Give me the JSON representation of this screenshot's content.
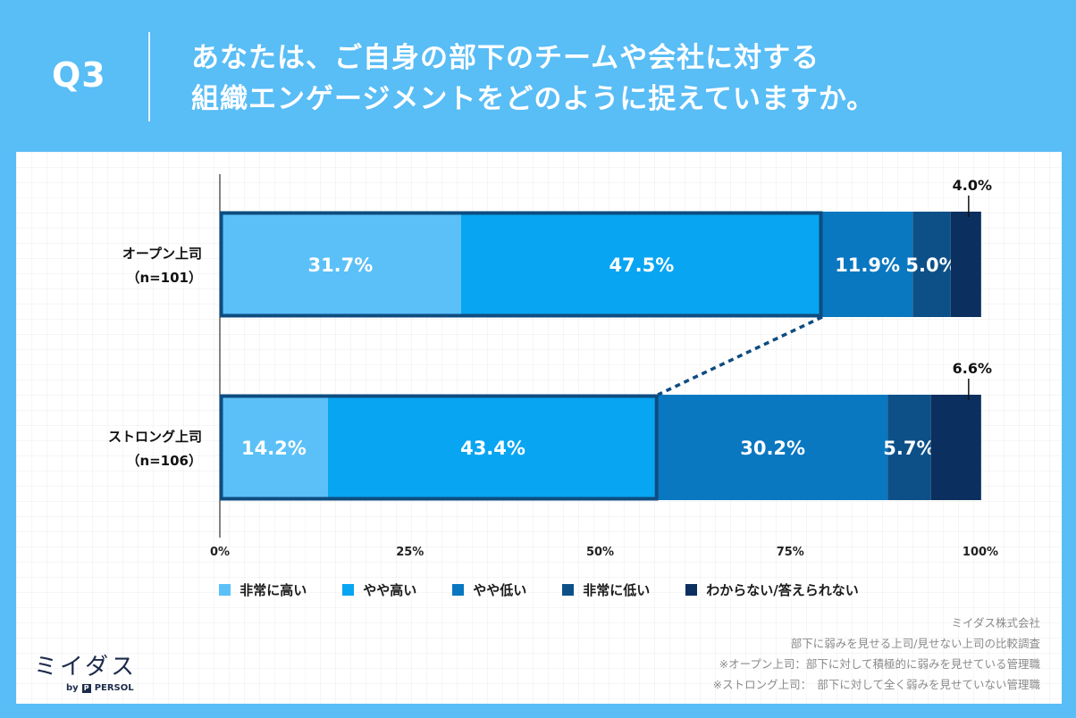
{
  "header": {
    "q_label": "Q3",
    "title_line1": "あなたは、ご自身の部下のチームや会社に対する",
    "title_line2": "組織エンゲージメントをどのように捉えていますか。"
  },
  "chart_data": {
    "type": "bar",
    "orientation": "horizontal-stacked-100",
    "categories": [
      {
        "line1": "オープン上司",
        "line2": "（n=101）"
      },
      {
        "line1": "ストロング上司",
        "line2": "（n=106）"
      }
    ],
    "series": [
      {
        "name": "非常に高い",
        "color": "#5BC0F7",
        "values": [
          31.7,
          14.2
        ]
      },
      {
        "name": "やや高い",
        "color": "#08A5F2",
        "values": [
          47.5,
          43.4
        ]
      },
      {
        "name": "やや低い",
        "color": "#0A77C1",
        "values": [
          11.9,
          30.2
        ]
      },
      {
        "name": "非常に低い",
        "color": "#0D5088",
        "values": [
          5.0,
          5.7
        ]
      },
      {
        "name": "わからない/答えられない",
        "color": "#0B2F5E",
        "values": [
          4.0,
          6.6
        ]
      }
    ],
    "value_labels": [
      [
        "31.7%",
        "47.5%",
        "11.9%",
        "5.0%",
        "4.0%"
      ],
      [
        "14.2%",
        "43.4%",
        "30.2%",
        "5.7%",
        "6.6%"
      ]
    ],
    "highlight_positive_share": true,
    "xlim": [
      0,
      100
    ],
    "ticks": [
      "0%",
      "25%",
      "50%",
      "75%",
      "100%"
    ],
    "legend_position": "bottom"
  },
  "source": {
    "company": "ミイダス株式会社",
    "survey": "部下に弱みを見せる上司/見せない上司の比較調査",
    "note1": "※オープン上司：部下に対して積極的に弱みを見せている管理職",
    "note2": "※ストロング上司：　部下に対して全く弱みを見せていない管理職"
  },
  "logo": {
    "main": "ミイダス",
    "by": "by",
    "brand": "PERSOL",
    "mark": "P"
  }
}
